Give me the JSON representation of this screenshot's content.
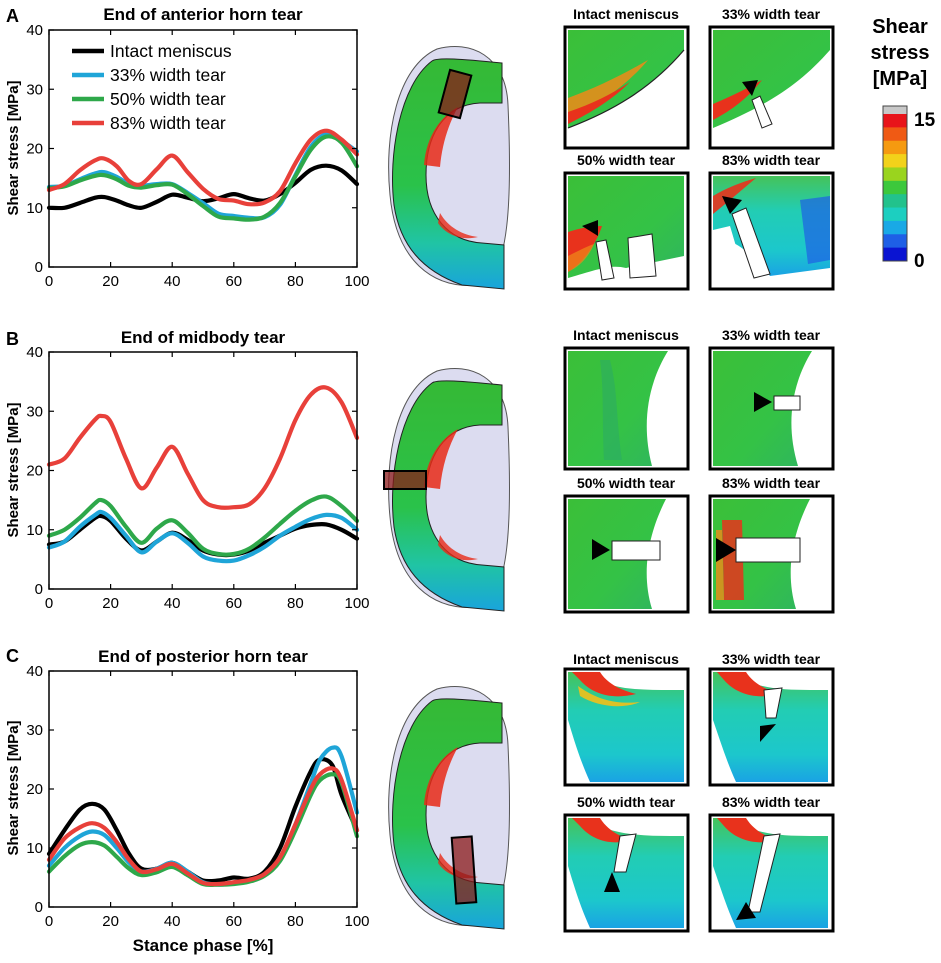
{
  "figure": {
    "panel_letters": [
      "A",
      "B",
      "C"
    ],
    "x_axis_label": "Stance phase [%]",
    "colorbar": {
      "title_lines": [
        "Shear",
        "stress",
        "[MPa]"
      ],
      "max_label": "15",
      "min_label": "0",
      "colors": [
        "#c8c8c8",
        "#e8141a",
        "#f05a14",
        "#f59a10",
        "#f2d21a",
        "#9ad41e",
        "#3cc83c",
        "#22c28c",
        "#1ccfc0",
        "#19a9e6",
        "#1e5fe6",
        "#0a14d2"
      ]
    },
    "inset_labels": [
      "Intact meniscus",
      "33% width tear",
      "50% width tear",
      "83% width tear"
    ]
  },
  "chart_data": [
    {
      "type": "line",
      "panel": "A",
      "title": "End of anterior horn tear",
      "xlabel": "",
      "ylabel": "Shear stress [MPa]",
      "xlim": [
        0,
        100
      ],
      "ylim": [
        0,
        40
      ],
      "xticks": [
        "0",
        "20",
        "40",
        "60",
        "80",
        "100"
      ],
      "yticks": [
        "0",
        "10",
        "20",
        "30",
        "40"
      ],
      "legend": [
        "Intact meniscus",
        "33% width tear",
        "50% width tear",
        "83% width tear"
      ],
      "x": [
        0,
        5,
        10,
        15,
        18,
        22,
        26,
        30,
        35,
        40,
        45,
        50,
        55,
        60,
        65,
        70,
        75,
        80,
        85,
        90,
        95,
        100
      ],
      "series": [
        {
          "name": "Intact meniscus",
          "color": "#000000",
          "values": [
            10,
            10,
            10.8,
            11.7,
            11.8,
            11.2,
            10.4,
            10,
            11,
            12.2,
            11.7,
            11.1,
            11.6,
            12.3,
            11.6,
            11.2,
            12.3,
            14.2,
            16.4,
            17.1,
            16.3,
            14
          ]
        },
        {
          "name": "33% width tear",
          "color": "#1fa5d8",
          "values": [
            13.5,
            13.7,
            14.8,
            15.8,
            16,
            15.2,
            14,
            13.7,
            14,
            14,
            12.5,
            10.8,
            9,
            8.6,
            8.3,
            8.4,
            10.5,
            15.5,
            20.3,
            22.4,
            21.3,
            19.5
          ]
        },
        {
          "name": "50% width tear",
          "color": "#2ea84a",
          "values": [
            13.3,
            13.6,
            14.6,
            15.4,
            15.5,
            14.8,
            13.7,
            13.4,
            13.8,
            13.9,
            12.3,
            10.3,
            8.5,
            8.2,
            8,
            8.5,
            10.8,
            15.3,
            19.8,
            22,
            21,
            17
          ]
        },
        {
          "name": "83% width tear",
          "color": "#e8403a",
          "values": [
            13,
            14,
            16.3,
            18,
            18.3,
            17,
            14.5,
            14,
            16.5,
            18.8,
            16,
            13.2,
            11.5,
            11.2,
            10.6,
            10.9,
            12.8,
            17.5,
            21.5,
            23,
            21.5,
            19
          ]
        }
      ]
    },
    {
      "type": "line",
      "panel": "B",
      "title": "End of midbody tear",
      "xlabel": "",
      "ylabel": "Shear stress [MPa]",
      "xlim": [
        0,
        100
      ],
      "ylim": [
        0,
        40
      ],
      "xticks": [
        "0",
        "20",
        "40",
        "60",
        "80",
        "100"
      ],
      "yticks": [
        "0",
        "10",
        "20",
        "30",
        "40"
      ],
      "x": [
        0,
        5,
        10,
        15,
        17,
        20,
        25,
        30,
        35,
        40,
        45,
        50,
        55,
        60,
        65,
        70,
        75,
        80,
        85,
        90,
        95,
        100
      ],
      "series": [
        {
          "name": "Intact meniscus",
          "color": "#000000",
          "values": [
            7.5,
            8,
            10,
            12,
            12.3,
            11.5,
            8.5,
            6.5,
            8,
            9.5,
            8.3,
            6.5,
            5.8,
            5.8,
            6.5,
            7.8,
            9,
            10.2,
            10.8,
            10.9,
            10,
            8.5
          ]
        },
        {
          "name": "33% width tear",
          "color": "#1fa5d8",
          "values": [
            7,
            8,
            10.5,
            12.5,
            13,
            12,
            9,
            6.2,
            8,
            9.4,
            7.8,
            5.5,
            4.8,
            4.8,
            5.7,
            7.1,
            9,
            10.5,
            11.8,
            12.5,
            12,
            10
          ]
        },
        {
          "name": "50% width tear",
          "color": "#2ea84a",
          "values": [
            9,
            10,
            12,
            14.5,
            15,
            14,
            10.5,
            7.8,
            10.2,
            11.6,
            9.5,
            6.8,
            5.9,
            5.9,
            6.8,
            8.7,
            11,
            13.2,
            14.9,
            15.6,
            14,
            11.5
          ]
        },
        {
          "name": "83% width tear",
          "color": "#e8403a",
          "values": [
            21,
            22,
            25.5,
            28.6,
            29.2,
            28.2,
            22,
            17,
            20.5,
            24,
            19.5,
            15,
            13.8,
            13.8,
            14.3,
            17,
            22,
            28.5,
            32.8,
            34,
            31.5,
            25.5
          ]
        }
      ]
    },
    {
      "type": "line",
      "panel": "C",
      "title": "End of posterior horn tear",
      "xlabel": "Stance phase [%]",
      "ylabel": "Shear stress [MPa]",
      "xlim": [
        0,
        100
      ],
      "ylim": [
        0,
        40
      ],
      "xticks": [
        "0",
        "20",
        "40",
        "60",
        "80",
        "100"
      ],
      "yticks": [
        "0",
        "10",
        "20",
        "30",
        "40"
      ],
      "x": [
        0,
        5,
        10,
        14,
        18,
        22,
        26,
        30,
        35,
        40,
        45,
        50,
        55,
        60,
        65,
        70,
        75,
        80,
        85,
        88,
        92,
        95,
        100
      ],
      "series": [
        {
          "name": "Intact meniscus",
          "color": "#000000",
          "values": [
            9,
            13,
            16.5,
            17.5,
            16.5,
            13,
            9,
            6.5,
            6.5,
            7.5,
            6,
            4.5,
            4.5,
            5,
            4.8,
            6,
            10,
            17,
            23,
            25,
            24,
            19,
            13
          ]
        },
        {
          "name": "33% width tear",
          "color": "#1fa5d8",
          "values": [
            7,
            10,
            12,
            12.8,
            12.2,
            10,
            7.5,
            6,
            6.5,
            7.5,
            6,
            4.2,
            3.8,
            4,
            4.5,
            5.5,
            8,
            14,
            21,
            25,
            27,
            25.5,
            16
          ]
        },
        {
          "name": "50% width tear",
          "color": "#2ea84a",
          "values": [
            6,
            8.6,
            10.5,
            11,
            10.4,
            8.5,
            6.5,
            5.4,
            5.9,
            6.8,
            5.4,
            3.9,
            3.8,
            3.9,
            4.3,
            5.3,
            7.8,
            13,
            19,
            21.5,
            22.5,
            21,
            12
          ]
        },
        {
          "name": "83% width tear",
          "color": "#e8403a",
          "values": [
            8,
            11.6,
            13.5,
            14.2,
            13.4,
            11,
            8,
            6,
            6.4,
            7.3,
            5.7,
            4.1,
            3.9,
            4.2,
            4.6,
            5.6,
            8.4,
            14,
            20,
            22.5,
            23.5,
            21.5,
            13
          ]
        }
      ]
    }
  ]
}
